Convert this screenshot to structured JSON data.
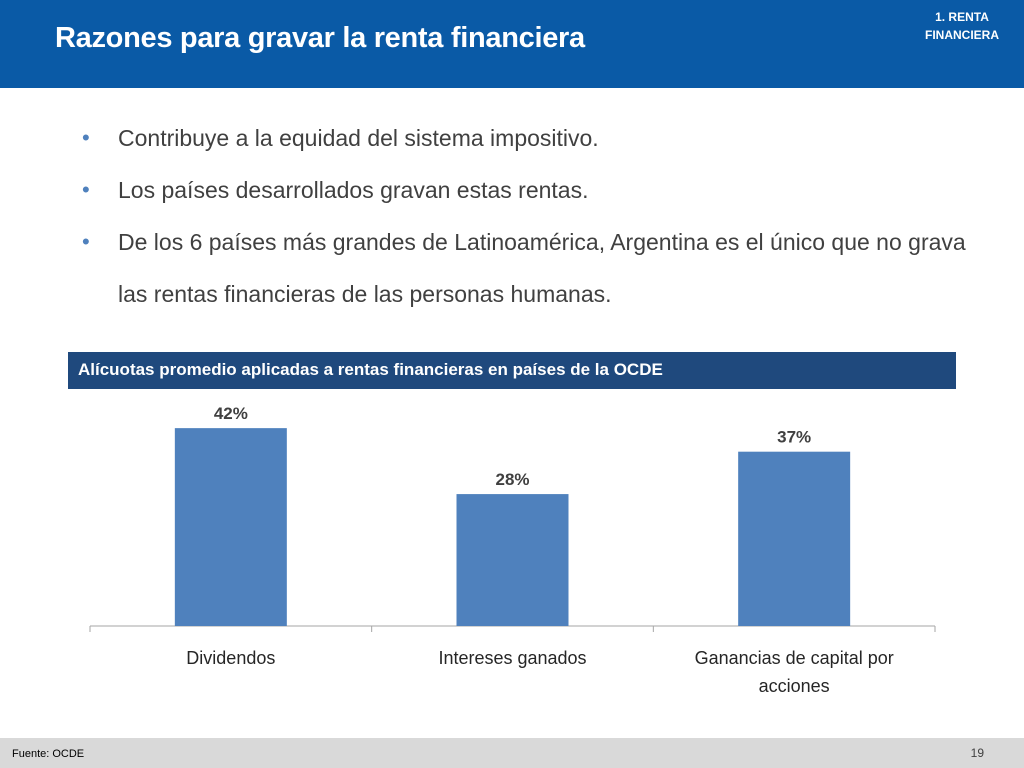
{
  "header": {
    "title": "Razones para gravar la renta financiera",
    "section_tag": "1. RENTA FINANCIERA"
  },
  "bullets": [
    "Contribuye a la equidad del sistema impositivo.",
    "Los países desarrollados gravan estas rentas.",
    "De los 6 países más grandes de Latinoamérica, Argentina es el único que no grava las rentas financieras de las personas humanas."
  ],
  "chart_banner": "Alícuotas promedio aplicadas a rentas financieras en países de la OCDE",
  "chart_data": {
    "type": "bar",
    "title": "Alícuotas promedio aplicadas a rentas financieras en países de la OCDE",
    "categories": [
      "Dividendos",
      "Intereses ganados",
      "Ganancias de capital por acciones"
    ],
    "values": [
      42,
      28,
      37
    ],
    "data_labels": [
      "42%",
      "28%",
      "37%"
    ],
    "ylim": [
      0,
      45
    ],
    "grid": false,
    "bar_color": "#4f81bd"
  },
  "footer": {
    "source": "Fuente: OCDE",
    "page": "19"
  },
  "colors": {
    "header_bg": "#0a5aa6",
    "banner_bg": "#1f497d",
    "footer_bg": "#d9d9d9"
  }
}
